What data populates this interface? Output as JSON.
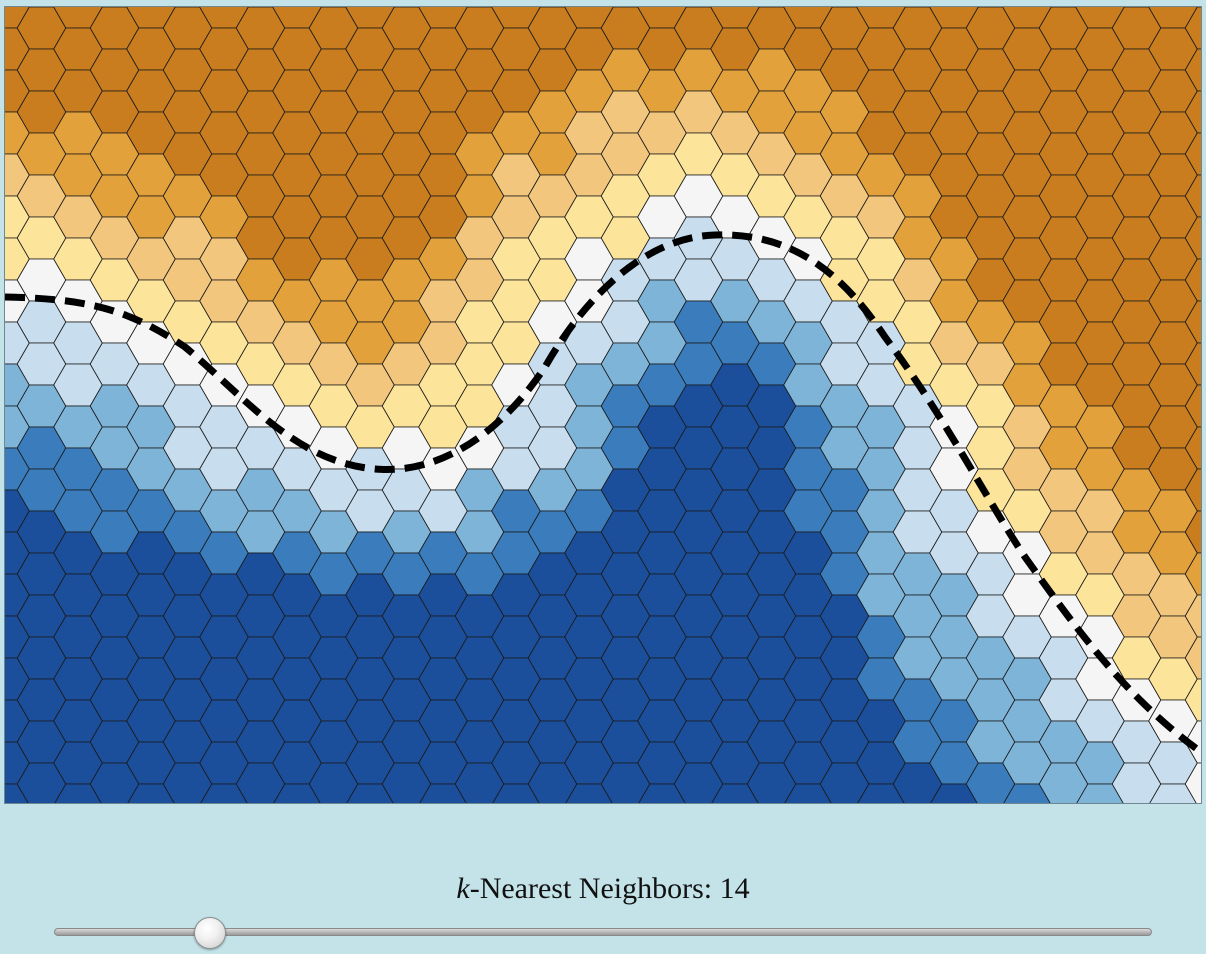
{
  "control": {
    "k_label": "k",
    "label_text": "-Nearest Neighbors: ",
    "k_value": "14",
    "slider_value": 14,
    "slider_min": 1,
    "slider_max": 100
  },
  "colors": {
    "orange_dark": "#c97d1e",
    "orange_medium": "#e3a13b",
    "orange_light": "#f2c67c",
    "orange_pale": "#fde49b",
    "neutral": "#f5f5f5",
    "blue_pale": "#c8dded",
    "blue_light": "#7fb4d9",
    "blue_medium": "#3a7cbc",
    "blue_dark": "#1b4f9c",
    "hex_border": "#1a1a1a",
    "boundary": "#000000"
  }
}
